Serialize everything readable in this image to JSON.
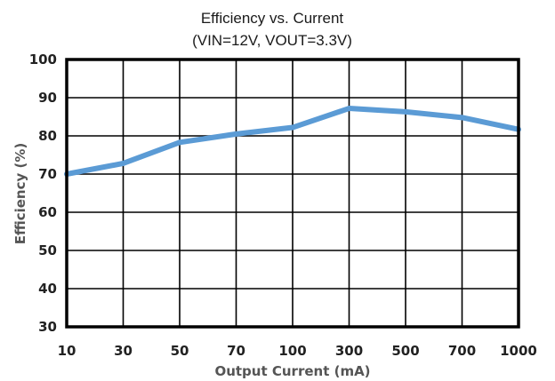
{
  "chart_data": {
    "type": "line",
    "title": "Efficiency vs. Current",
    "subtitle": "(VIN=12V, VOUT=3.3V)",
    "xlabel": "Output Current (mA)",
    "ylabel": "Efficiency (%)",
    "categories": [
      "10",
      "30",
      "50",
      "70",
      "100",
      "300",
      "500",
      "700",
      "1000"
    ],
    "series": [
      {
        "values": [
          70,
          72.8,
          78.3,
          80.5,
          82.2,
          87.2,
          86.3,
          84.8,
          81.7
        ]
      }
    ],
    "ylim": [
      30,
      100
    ],
    "yticks": [
      "30",
      "40",
      "50",
      "60",
      "70",
      "80",
      "90",
      "100"
    ],
    "grid": true,
    "legend": "none",
    "line_color": "#5b9bd5"
  }
}
